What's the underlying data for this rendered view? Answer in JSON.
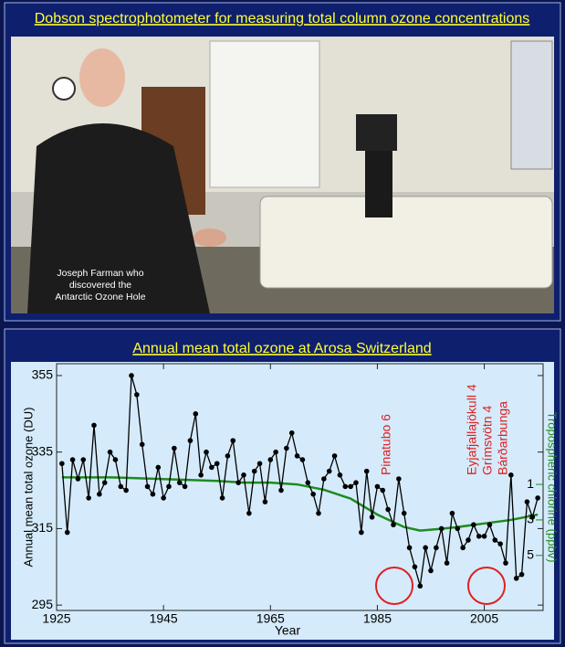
{
  "photo_panel": {
    "title": "Dobson spectrophotometer for measuring total column ozone concentrations",
    "caption": [
      "Joseph Farman who",
      "discovered the",
      "Antarctic Ozone Hole"
    ]
  },
  "chart_data": {
    "type": "line",
    "title": "Annual mean total ozone at Arosa Switzerland",
    "x_label": "Year",
    "y_label": "Annual mean total ozone (DU)",
    "y2_label": "Tropospheric chlorine (ppbv)",
    "xlim": [
      1925,
      2016
    ],
    "xticks": [
      1925,
      1945,
      1965,
      1985,
      2005
    ],
    "ylim": [
      293.6,
      358.1
    ],
    "yticks": [
      295,
      315,
      335,
      355
    ],
    "y2lim": [
      8.1,
      -5.8
    ],
    "y2ticks": [
      1,
      3,
      5
    ],
    "annotations": [
      "Pinatubo 6",
      "Eyjafjallajökull 4",
      "Grímsvötn 4",
      "Bárðarbunga"
    ],
    "series": [
      {
        "name": "Total ozone",
        "color": "#000000",
        "x": [
          1926,
          1927,
          1928,
          1929,
          1930,
          1931,
          1932,
          1933,
          1934,
          1935,
          1936,
          1937,
          1938,
          1939,
          1940,
          1941,
          1942,
          1943,
          1944,
          1945,
          1946,
          1947,
          1948,
          1949,
          1950,
          1951,
          1952,
          1953,
          1954,
          1955,
          1956,
          1957,
          1958,
          1959,
          1960,
          1961,
          1962,
          1963,
          1964,
          1965,
          1966,
          1967,
          1968,
          1969,
          1970,
          1971,
          1972,
          1973,
          1974,
          1975,
          1976,
          1977,
          1978,
          1979,
          1980,
          1981,
          1982,
          1983,
          1984,
          1985,
          1986,
          1987,
          1988,
          1989,
          1990,
          1991,
          1992,
          1993,
          1994,
          1995,
          1996,
          1997,
          1998,
          1999,
          2000,
          2001,
          2002,
          2003,
          2004,
          2005,
          2006,
          2007,
          2008,
          2009,
          2010,
          2011,
          2012,
          2013,
          2014,
          2015
        ],
        "values": [
          332,
          314,
          333,
          328,
          333,
          323,
          342,
          324,
          327,
          335,
          333,
          326,
          325,
          355,
          350,
          337,
          326,
          324,
          331,
          323,
          326,
          336,
          327,
          326,
          338,
          345,
          329,
          335,
          331,
          332,
          323,
          334,
          338,
          327,
          329,
          319,
          330,
          332,
          322,
          333,
          335,
          325,
          336,
          340,
          334,
          333,
          327,
          324,
          319,
          328,
          330,
          334,
          329,
          326,
          326,
          327,
          314,
          330,
          318,
          326,
          325,
          320,
          316,
          328,
          319,
          310,
          305,
          300,
          310,
          304,
          310,
          315,
          306,
          319,
          315,
          310,
          312,
          316,
          313,
          313,
          316,
          312,
          311,
          306,
          329,
          302,
          303,
          322,
          318,
          323
        ]
      },
      {
        "name": "Tropospheric chlorine",
        "color": "#1f8a1f",
        "axis": "y2",
        "x": [
          1926,
          1935,
          1945,
          1955,
          1960,
          1965,
          1970,
          1975,
          1980,
          1985,
          1990,
          1993,
          1997,
          2000,
          2005,
          2010,
          2015
        ],
        "values": [
          0.6,
          0.6,
          0.7,
          0.8,
          0.9,
          0.9,
          1.0,
          1.3,
          1.8,
          2.7,
          3.4,
          3.6,
          3.5,
          3.4,
          3.2,
          3.0,
          2.7
        ]
      }
    ]
  }
}
